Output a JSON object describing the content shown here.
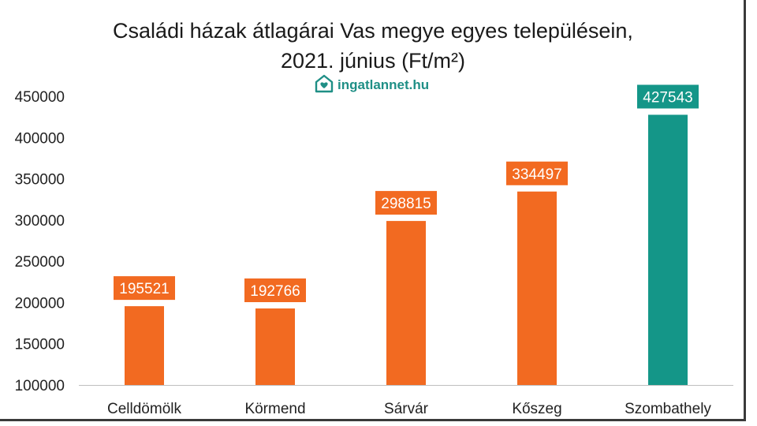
{
  "chart_data": {
    "type": "bar",
    "title": "Családi házak átlagárai Vas megye egyes településein,",
    "subtitle": "2021. június (Ft/m²)",
    "watermark": "ingatlannet.hu",
    "categories": [
      "Celldömölk",
      "Körmend",
      "Sárvár",
      "Kőszeg",
      "Szombathely"
    ],
    "values": [
      195521,
      192766,
      298815,
      334497,
      427543
    ],
    "value_labels": [
      "195521",
      "192766",
      "298815",
      "334497",
      "427543"
    ],
    "colors": [
      "#f26a21",
      "#f26a21",
      "#f26a21",
      "#f26a21",
      "#149688"
    ],
    "ylim": [
      100000,
      450000
    ],
    "yticks": [
      100000,
      150000,
      200000,
      250000,
      300000,
      350000,
      400000,
      450000
    ],
    "ytick_labels": [
      "100000",
      "150000",
      "200000",
      "250000",
      "300000",
      "350000",
      "400000",
      "450000"
    ],
    "grid": false,
    "legend": "none",
    "xlabel": "",
    "ylabel": ""
  }
}
